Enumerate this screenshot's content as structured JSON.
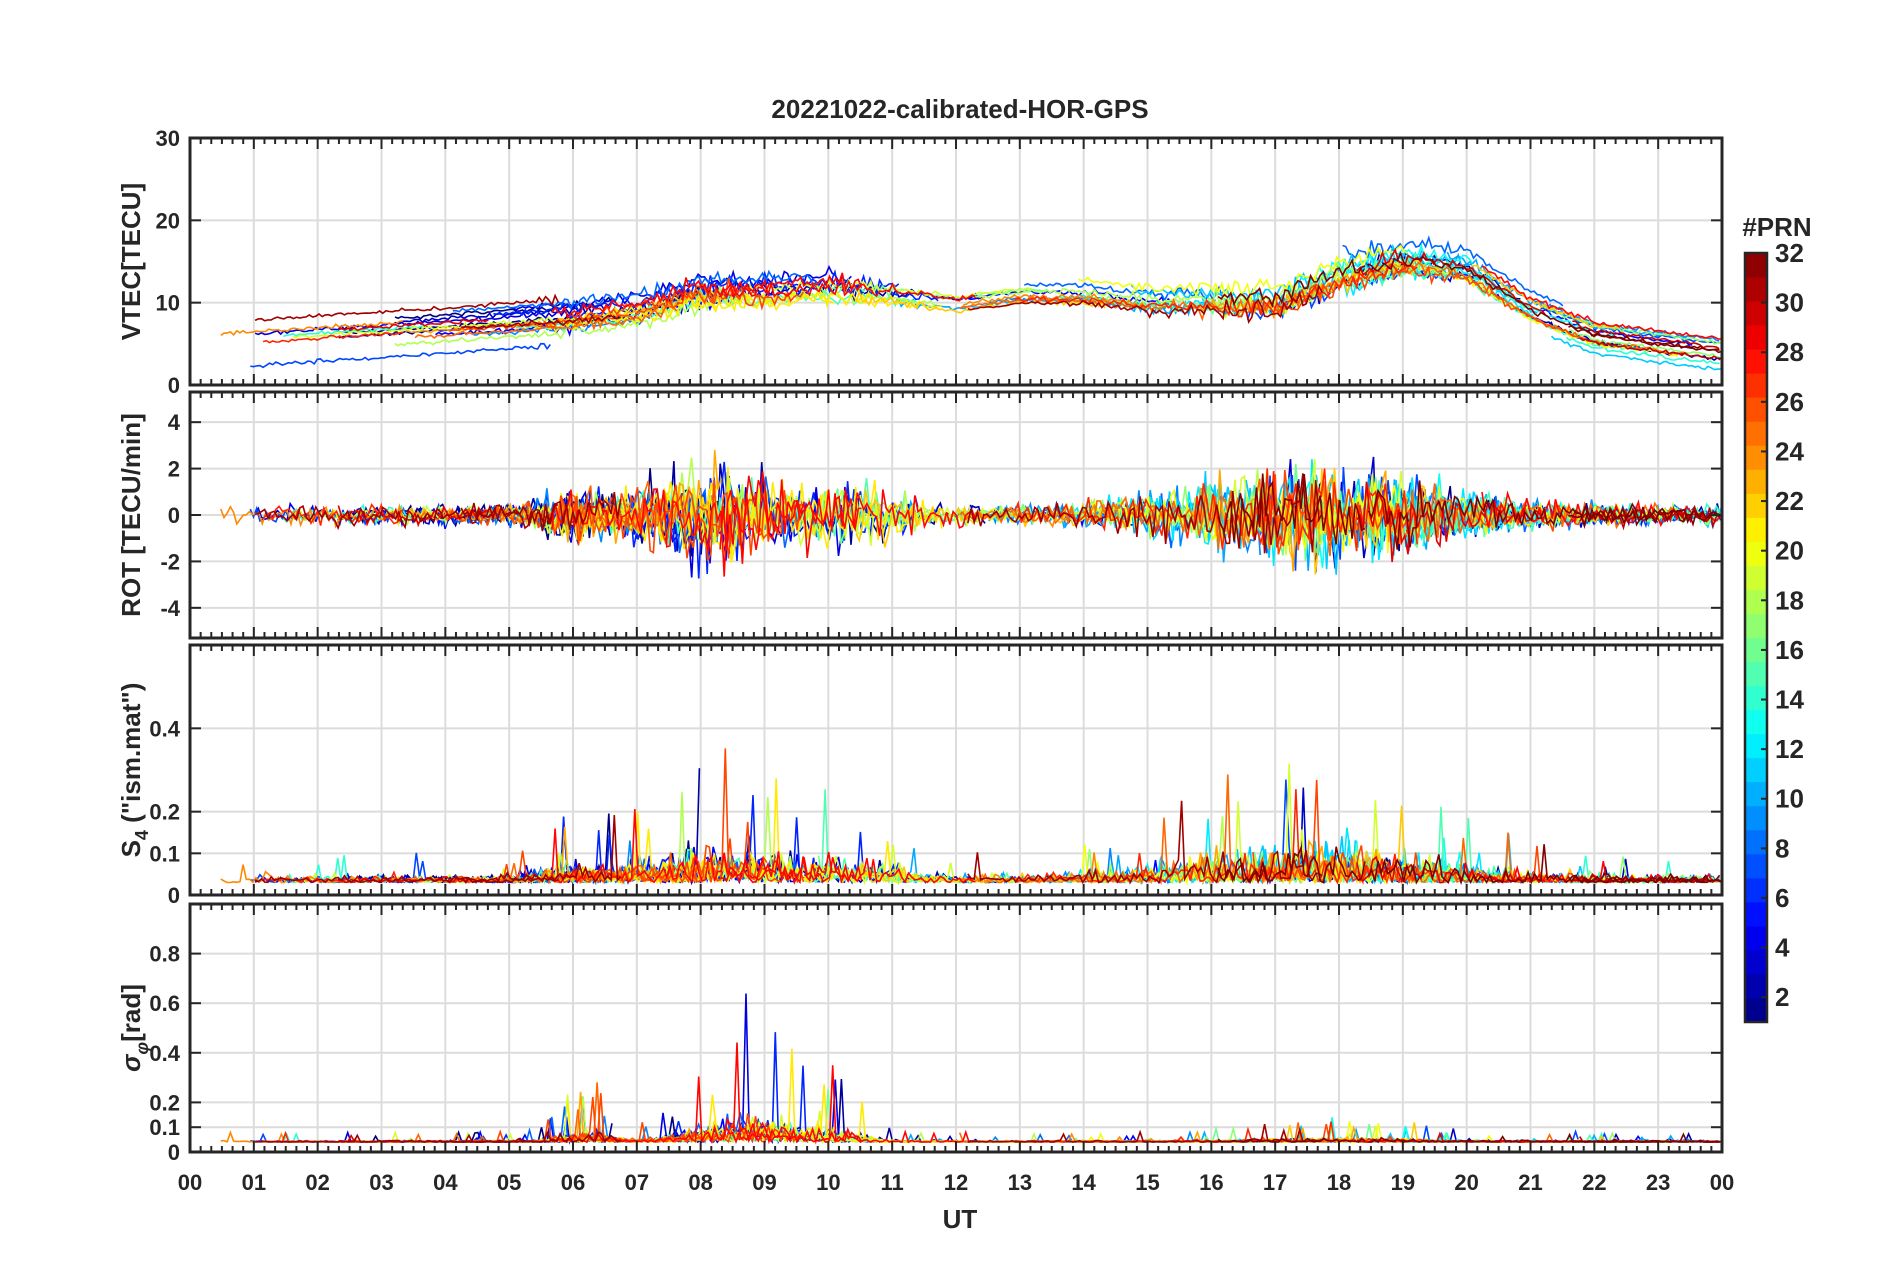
{
  "chart_data": {
    "type": "line",
    "title": "20221022-calibrated-HOR-GPS",
    "xlabel": "UT",
    "x_tick_labels": [
      "00",
      "01",
      "02",
      "03",
      "04",
      "05",
      "06",
      "07",
      "08",
      "09",
      "10",
      "11",
      "12",
      "13",
      "14",
      "15",
      "16",
      "17",
      "18",
      "19",
      "20",
      "21",
      "22",
      "23",
      "00"
    ],
    "xlim_hours": [
      0,
      24
    ],
    "grid": true,
    "colorbar": {
      "title": "#PRN",
      "range": [
        1,
        32
      ],
      "ticks": [
        "2",
        "4",
        "6",
        "8",
        "10",
        "12",
        "14",
        "16",
        "18",
        "20",
        "22",
        "24",
        "26",
        "28",
        "30",
        "32"
      ],
      "colormap": "jet",
      "colors": [
        "#00008f",
        "#0000ff",
        "#0080ff",
        "#00ffff",
        "#80ff80",
        "#ffff00",
        "#ff8000",
        "#ff0000",
        "#800000"
      ]
    },
    "panels": [
      {
        "ylabel": "VTEC[TECU]",
        "ylim": [
          0,
          30
        ],
        "y_ticks": [
          "0",
          "10",
          "20",
          "30"
        ],
        "profile_hours": [
          0,
          2,
          4,
          5,
          6,
          7,
          8,
          9,
          10,
          11,
          12,
          13,
          14,
          15,
          16,
          17,
          18,
          19,
          20,
          21,
          22,
          23,
          24
        ],
        "profile_values": [
          5,
          6,
          7,
          7.5,
          8,
          9,
          11,
          11,
          11.5,
          11,
          10,
          11,
          11,
          10,
          10,
          10,
          13,
          15,
          14,
          9,
          6,
          5,
          4
        ]
      },
      {
        "ylabel": "ROT [TECU/min]",
        "ylim": [
          -5.3,
          5.3
        ],
        "y_ticks": [
          "-4",
          "-2",
          "0",
          "2",
          "4"
        ]
      },
      {
        "ylabel": "S₄ (\"ism.mat\")",
        "ylabel_main": "S",
        "ylabel_sub": "4",
        "ylabel_rest": " (\"ism.mat\")",
        "ylim": [
          0,
          0.6
        ],
        "y_ticks": [
          "0",
          "0.1",
          "0.2",
          "0.4"
        ]
      },
      {
        "ylabel": "σφ[rad]",
        "ylabel_main": "σ",
        "ylabel_sub": "φ",
        "ylabel_rest": "[rad]",
        "ylim": [
          0,
          1
        ],
        "y_ticks": [
          "0",
          "0.1",
          "0.2",
          "0.4",
          "0.6",
          "0.8"
        ]
      }
    ]
  }
}
